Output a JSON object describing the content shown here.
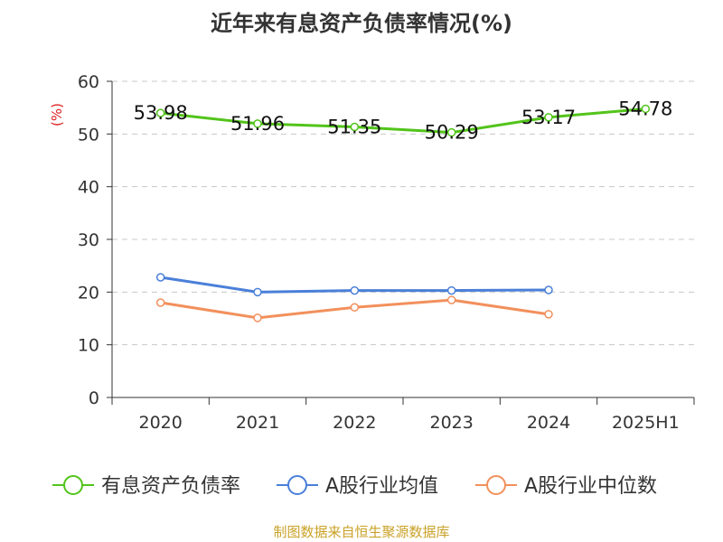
{
  "chart_data": {
    "type": "line",
    "title": "近年来有息资产负债率情况(%)",
    "ylabel": "(%)",
    "categories": [
      "2020",
      "2021",
      "2022",
      "2023",
      "2024",
      "2025H1"
    ],
    "ylim": [
      0,
      60
    ],
    "yticks": [
      "0",
      "10",
      "20",
      "30",
      "40",
      "50",
      "60"
    ],
    "grid": "horizontal-dashed",
    "legend_position": "bottom",
    "series": [
      {
        "name": "有息资产负债率",
        "color": "#52c41a",
        "values": [
          53.98,
          51.96,
          51.35,
          50.29,
          53.17,
          54.78
        ],
        "labels": [
          "53.98",
          "51.96",
          "51.35",
          "50.29",
          "53.17",
          "54.78"
        ]
      },
      {
        "name": "A股行业均值",
        "color": "#4a7fd8",
        "values": [
          22.8,
          20.0,
          20.3,
          20.3,
          20.4,
          null
        ]
      },
      {
        "name": "A股行业中位数",
        "color": "#f2905c",
        "values": [
          18.0,
          15.1,
          17.1,
          18.5,
          15.8,
          null
        ]
      }
    ]
  },
  "source": "制图数据来自恒生聚源数据库"
}
